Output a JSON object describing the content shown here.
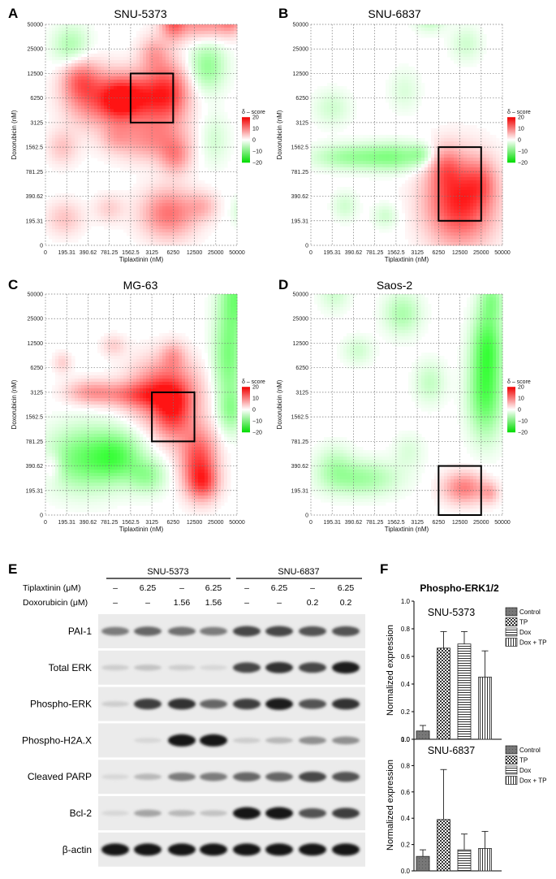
{
  "heatmaps": [
    {
      "label": "A",
      "title": "SNU-5373",
      "box": {
        "x": [
          4,
          6
        ],
        "y": [
          5,
          7
        ]
      },
      "blobs": [
        [
          4.3,
          6.0,
          0.9,
          0.7,
          16
        ],
        [
          5.8,
          6.2,
          0.7,
          0.85,
          15
        ],
        [
          3.4,
          5.9,
          0.6,
          0.6,
          11
        ],
        [
          2.2,
          6.0,
          0.9,
          0.8,
          11
        ],
        [
          1.6,
          6.8,
          0.6,
          0.6,
          9
        ],
        [
          5.0,
          4.3,
          1.2,
          0.6,
          9
        ],
        [
          6.1,
          3.6,
          0.5,
          0.5,
          8
        ],
        [
          5.1,
          7.8,
          0.5,
          0.5,
          7
        ],
        [
          6.0,
          9.1,
          0.4,
          0.5,
          11
        ],
        [
          7.4,
          9.1,
          1.0,
          0.5,
          10
        ],
        [
          8.7,
          9.2,
          0.4,
          0.4,
          8
        ],
        [
          9.8,
          9.8,
          0.35,
          0.35,
          12
        ],
        [
          0.8,
          4.0,
          0.5,
          0.5,
          5
        ],
        [
          3.3,
          4.4,
          0.5,
          0.4,
          4
        ],
        [
          0.9,
          1.1,
          0.6,
          0.5,
          5
        ],
        [
          5.8,
          1.3,
          0.9,
          0.7,
          12
        ],
        [
          7.4,
          1.6,
          0.5,
          0.4,
          5
        ],
        [
          3.0,
          1.5,
          0.5,
          0.4,
          4
        ],
        [
          1.2,
          8.1,
          0.6,
          0.6,
          -7
        ],
        [
          7.6,
          7.3,
          0.6,
          0.7,
          -9
        ],
        [
          7.9,
          4.3,
          0.5,
          0.7,
          -4
        ],
        [
          9.3,
          1.4,
          0.4,
          0.4,
          -4
        ]
      ]
    },
    {
      "label": "B",
      "title": "SNU-6837",
      "box": {
        "x": [
          6,
          8
        ],
        "y": [
          1,
          4
        ]
      },
      "blobs": [
        [
          7.0,
          1.8,
          1.1,
          1.2,
          19
        ],
        [
          6.3,
          3.2,
          0.5,
          0.6,
          7
        ],
        [
          8.0,
          2.6,
          0.5,
          0.6,
          6
        ],
        [
          1.8,
          3.6,
          1.2,
          0.35,
          -8
        ],
        [
          4.0,
          3.6,
          1.0,
          0.4,
          -9
        ],
        [
          5.2,
          3.7,
          0.4,
          0.3,
          -5
        ],
        [
          1.6,
          1.6,
          0.4,
          0.4,
          -4
        ],
        [
          3.5,
          1.2,
          0.4,
          0.35,
          -4
        ],
        [
          1.0,
          5.6,
          0.6,
          0.5,
          -4
        ],
        [
          5.6,
          9.3,
          0.5,
          0.4,
          -6
        ],
        [
          7.3,
          8.2,
          0.5,
          0.5,
          -4
        ],
        [
          4.4,
          6.3,
          0.5,
          0.6,
          -3
        ]
      ]
    },
    {
      "label": "C",
      "title": "MG-63",
      "box": {
        "x": [
          5,
          7
        ],
        "y": [
          3,
          5
        ]
      },
      "blobs": [
        [
          5.6,
          5.0,
          1.1,
          0.9,
          15
        ],
        [
          6.0,
          4.1,
          0.6,
          0.8,
          11
        ],
        [
          7.2,
          2.3,
          0.6,
          0.9,
          15
        ],
        [
          7.4,
          1.3,
          0.5,
          0.5,
          11
        ],
        [
          4.2,
          4.9,
          1.1,
          0.35,
          9
        ],
        [
          2.1,
          5.0,
          0.8,
          0.35,
          8
        ],
        [
          6.0,
          6.5,
          0.4,
          0.4,
          6
        ],
        [
          3.2,
          6.9,
          0.4,
          0.3,
          4
        ],
        [
          0.8,
          6.2,
          0.3,
          0.3,
          4
        ],
        [
          0.3,
          2.0,
          0.3,
          0.4,
          5
        ],
        [
          1.8,
          2.3,
          1.2,
          0.9,
          -12
        ],
        [
          3.4,
          2.4,
          0.8,
          0.7,
          -11
        ],
        [
          4.8,
          1.6,
          0.6,
          0.5,
          -8
        ],
        [
          9.0,
          9.0,
          0.55,
          1.0,
          -11
        ],
        [
          8.6,
          6.4,
          0.5,
          1.4,
          -11
        ],
        [
          8.7,
          4.2,
          0.4,
          0.6,
          -7
        ]
      ]
    },
    {
      "label": "D",
      "title": "Saos-2",
      "box": {
        "x": [
          6,
          8
        ],
        "y": [
          0,
          2
        ]
      },
      "blobs": [
        [
          7.2,
          1.1,
          0.7,
          0.45,
          11
        ],
        [
          8.4,
          0.9,
          0.3,
          0.3,
          6
        ],
        [
          8.2,
          4.9,
          0.55,
          1.2,
          -14
        ],
        [
          8.3,
          7.0,
          0.5,
          1.0,
          -13
        ],
        [
          8.5,
          8.8,
          0.4,
          0.6,
          -8
        ],
        [
          2.4,
          1.5,
          1.2,
          0.5,
          -8
        ],
        [
          1.1,
          2.0,
          0.6,
          0.6,
          -5
        ],
        [
          4.6,
          2.6,
          0.5,
          0.5,
          -3
        ],
        [
          4.3,
          8.2,
          0.6,
          0.6,
          -7
        ],
        [
          2.2,
          6.7,
          0.5,
          0.4,
          -4
        ],
        [
          5.6,
          5.4,
          0.5,
          0.6,
          -5
        ],
        [
          1.1,
          9.0,
          0.5,
          0.5,
          -4
        ]
      ]
    }
  ],
  "axes": {
    "x_label": "Tiplaxtinin (nM)",
    "y_label": "Doxorubicin (nM)",
    "x_ticks": [
      "0",
      "195.31",
      "390.62",
      "781.25",
      "1562.5",
      "3125",
      "6250",
      "12500",
      "25000",
      "50000"
    ],
    "y_ticks": [
      "0",
      "195.31",
      "390.62",
      "781.25",
      "1562.5",
      "3125",
      "6250",
      "12500",
      "25000",
      "50000"
    ]
  },
  "legend": {
    "title": "δ – score",
    "ticks": [
      "20",
      "10",
      "0",
      "−10",
      "−20"
    ]
  },
  "blot": {
    "panel_label": "E",
    "group_labels": [
      "SNU-5373",
      "SNU-6837"
    ],
    "row_headers": [
      "Tiplaxtinin (μM)",
      "Doxorubicin (μM)"
    ],
    "tiplaxtinin": [
      "–",
      "6.25",
      "–",
      "6.25",
      "–",
      "6.25",
      "–",
      "6.25"
    ],
    "doxorubicin": [
      "–",
      "–",
      "1.56",
      "1.56",
      "–",
      "–",
      "0.2",
      "0.2"
    ],
    "strips": [
      {
        "label": "PAI-1",
        "bands": [
          0.5,
          0.6,
          0.55,
          0.5,
          0.75,
          0.75,
          0.7,
          0.7
        ]
      },
      {
        "label": "Total  ERK",
        "bands": [
          0.1,
          0.15,
          0.1,
          0.05,
          0.75,
          0.85,
          0.75,
          0.95
        ]
      },
      {
        "label": "Phospho-ERK",
        "bands": [
          0.1,
          0.8,
          0.85,
          0.6,
          0.8,
          0.95,
          0.7,
          0.85
        ]
      },
      {
        "label": "Phospho-H2A.X",
        "bands": [
          0.0,
          0.05,
          1.0,
          1.0,
          0.1,
          0.2,
          0.4,
          0.4
        ]
      },
      {
        "label": "Cleaved PARP",
        "bands": [
          0.05,
          0.2,
          0.5,
          0.5,
          0.6,
          0.6,
          0.75,
          0.7
        ]
      },
      {
        "label": "Bcl-2",
        "bands": [
          0.05,
          0.3,
          0.2,
          0.15,
          1.0,
          1.0,
          0.7,
          0.8
        ]
      },
      {
        "label": "β-actin",
        "bands": [
          1.0,
          1.0,
          1.0,
          1.0,
          1.0,
          1.0,
          1.0,
          1.0
        ]
      }
    ]
  },
  "bars": {
    "panel_label": "F",
    "title": "Phospho-ERK1/2",
    "ylabel": "Normalized expression",
    "legend": [
      "Control",
      "TP",
      "Dox",
      "Dox  + TP"
    ],
    "y_ticks": [
      "0.0",
      "0.2",
      "0.4",
      "0.6",
      "0.8",
      "1.0"
    ],
    "ylim": [
      0,
      1.0
    ]
  },
  "chart_data": [
    {
      "type": "bar",
      "title": "SNU-5373",
      "categories": [
        "Control",
        "TP",
        "Dox",
        "Dox  + TP"
      ],
      "values": [
        0.06,
        0.66,
        0.69,
        0.45
      ],
      "errors": [
        0.04,
        0.12,
        0.09,
        0.19
      ],
      "ylabel": "Normalized expression",
      "ylim": [
        0,
        1.0
      ]
    },
    {
      "type": "bar",
      "title": "SNU-6837",
      "categories": [
        "Control",
        "TP",
        "Dox",
        "Dox  + TP"
      ],
      "values": [
        0.11,
        0.39,
        0.16,
        0.17
      ],
      "errors": [
        0.05,
        0.38,
        0.12,
        0.13
      ],
      "ylabel": "Normalized expression",
      "ylim": [
        0,
        1.0
      ]
    }
  ]
}
